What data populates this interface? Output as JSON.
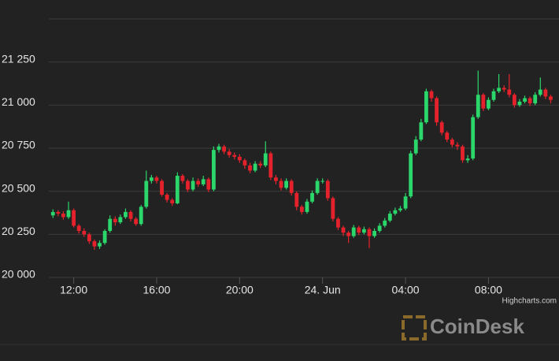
{
  "chart_data": {
    "type": "candlestick",
    "xlim": [
      10.8,
      35.4
    ],
    "xticks": [
      {
        "value": 12,
        "label": "12:00"
      },
      {
        "value": 16,
        "label": "16:00"
      },
      {
        "value": 20,
        "label": "20:00"
      },
      {
        "value": 24,
        "label": "24. Jun"
      },
      {
        "value": 28,
        "label": "04:00"
      },
      {
        "value": 32,
        "label": "08:00"
      }
    ],
    "ylim": [
      20000,
      21500
    ],
    "yticks": [
      {
        "value": 20000,
        "label": "20 000"
      },
      {
        "value": 20250,
        "label": "20 250"
      },
      {
        "value": 20500,
        "label": "20 500"
      },
      {
        "value": 20750,
        "label": "20 750"
      },
      {
        "value": 21000,
        "label": "21 000"
      },
      {
        "value": 21250,
        "label": "21 250"
      }
    ],
    "grid": true,
    "up_color": "#2bd66a",
    "down_color": "#e5222b",
    "credits": "Highcharts.com",
    "watermark": "CoinDesk",
    "x": [
      11,
      11.25,
      11.5,
      11.75,
      12,
      12.25,
      12.5,
      12.75,
      13,
      13.25,
      13.5,
      13.75,
      14,
      14.25,
      14.5,
      14.75,
      15,
      15.25,
      15.5,
      15.75,
      16,
      16.25,
      16.5,
      16.75,
      17,
      17.25,
      17.5,
      17.75,
      18,
      18.25,
      18.5,
      18.75,
      19,
      19.25,
      19.5,
      19.75,
      20,
      20.25,
      20.5,
      20.75,
      21,
      21.25,
      21.5,
      21.75,
      22,
      22.25,
      22.5,
      22.75,
      23,
      23.25,
      23.5,
      23.75,
      24,
      24.25,
      24.5,
      24.75,
      25,
      25.25,
      25.5,
      25.75,
      26,
      26.25,
      26.5,
      26.75,
      27,
      27.25,
      27.5,
      27.75,
      28,
      28.25,
      28.5,
      28.75,
      29,
      29.25,
      29.5,
      29.75,
      30,
      30.25,
      30.5,
      30.75,
      31,
      31.25,
      31.5,
      31.75,
      32,
      32.25,
      32.5,
      32.75,
      33,
      33.25,
      33.5,
      33.75,
      34,
      34.25,
      34.5,
      34.75,
      35
    ],
    "open": [
      20360,
      20380,
      20370,
      20350,
      20390,
      20300,
      20270,
      20250,
      20210,
      20180,
      20200,
      20270,
      20340,
      20320,
      20350,
      20380,
      20340,
      20310,
      20410,
      20560,
      20580,
      20560,
      20480,
      20450,
      20430,
      20590,
      20560,
      20510,
      20560,
      20540,
      20570,
      20510,
      20740,
      20760,
      20730,
      20710,
      20700,
      20680,
      20650,
      20620,
      20660,
      20650,
      20720,
      20580,
      20560,
      20520,
      20560,
      20490,
      20410,
      20380,
      20440,
      20490,
      20560,
      20560,
      20460,
      20340,
      20290,
      20260,
      20240,
      20290,
      20260,
      20280,
      20240,
      20270,
      20300,
      20330,
      20370,
      20390,
      20400,
      20470,
      20720,
      20800,
      20900,
      21080,
      21040,
      20900,
      20840,
      20800,
      20770,
      20760,
      20680,
      20690,
      20930,
      21060,
      20980,
      21030,
      21080,
      21100,
      21090,
      21060,
      21000,
      21020,
      21040,
      21010,
      21060,
      21090,
      21050
    ],
    "high": [
      20395,
      20390,
      20385,
      20440,
      20400,
      20310,
      20285,
      20260,
      20220,
      20215,
      20280,
      20360,
      20355,
      20365,
      20400,
      20390,
      20350,
      20420,
      20620,
      20595,
      20590,
      20570,
      20490,
      20460,
      20610,
      20600,
      20570,
      20580,
      20575,
      20590,
      20580,
      20760,
      20775,
      20770,
      20745,
      20725,
      20715,
      20690,
      20665,
      20675,
      20675,
      20790,
      20730,
      20595,
      20575,
      20575,
      20570,
      20500,
      20420,
      20455,
      20505,
      20575,
      20575,
      20570,
      20470,
      20350,
      20300,
      20270,
      20305,
      20300,
      20295,
      20290,
      20285,
      20315,
      20345,
      20385,
      20405,
      20415,
      20490,
      20735,
      20820,
      20920,
      21095,
      21090,
      21050,
      20910,
      20850,
      20810,
      20785,
      20770,
      20710,
      20945,
      21200,
      21070,
      21045,
      21095,
      21180,
      21115,
      21180,
      21070,
      21035,
      21055,
      21050,
      21075,
      21160,
      21100,
      21060
    ],
    "low": [
      20345,
      20355,
      20335,
      20340,
      20290,
      20255,
      20235,
      20195,
      20160,
      20165,
      20190,
      20260,
      20300,
      20310,
      20340,
      20325,
      20300,
      20300,
      20400,
      20545,
      20545,
      20470,
      20435,
      20415,
      20425,
      20545,
      20495,
      20500,
      20525,
      20530,
      20495,
      20500,
      20725,
      20715,
      20695,
      20685,
      20665,
      20630,
      20605,
      20610,
      20635,
      20640,
      20565,
      20540,
      20505,
      20510,
      20475,
      20390,
      20365,
      20370,
      20430,
      20480,
      20545,
      20445,
      20325,
      20275,
      20240,
      20200,
      20230,
      20245,
      20250,
      20170,
      20230,
      20260,
      20290,
      20320,
      20360,
      20380,
      20390,
      20460,
      20710,
      20790,
      20890,
      21020,
      20880,
      20825,
      20785,
      20755,
      20740,
      20665,
      20665,
      20680,
      20920,
      20965,
      20970,
      21020,
      21070,
      21075,
      21045,
      20985,
      20990,
      21010,
      20995,
      21000,
      21050,
      21035,
      21010
    ],
    "close": [
      20380,
      20370,
      20350,
      20390,
      20300,
      20270,
      20250,
      20210,
      20180,
      20200,
      20270,
      20340,
      20320,
      20350,
      20380,
      20340,
      20310,
      20410,
      20560,
      20580,
      20560,
      20480,
      20450,
      20430,
      20590,
      20560,
      20510,
      20560,
      20540,
      20570,
      20510,
      20740,
      20760,
      20730,
      20710,
      20700,
      20680,
      20650,
      20620,
      20660,
      20650,
      20720,
      20580,
      20560,
      20520,
      20560,
      20490,
      20410,
      20380,
      20440,
      20490,
      20560,
      20560,
      20460,
      20340,
      20290,
      20260,
      20240,
      20290,
      20260,
      20280,
      20240,
      20270,
      20300,
      20330,
      20370,
      20390,
      20400,
      20470,
      20720,
      20800,
      20900,
      21080,
      21040,
      20900,
      20840,
      20800,
      20770,
      20760,
      20680,
      20690,
      20930,
      21060,
      20980,
      21030,
      21080,
      21100,
      21090,
      21060,
      21000,
      21020,
      21040,
      21010,
      21060,
      21090,
      21050,
      21030
    ]
  }
}
